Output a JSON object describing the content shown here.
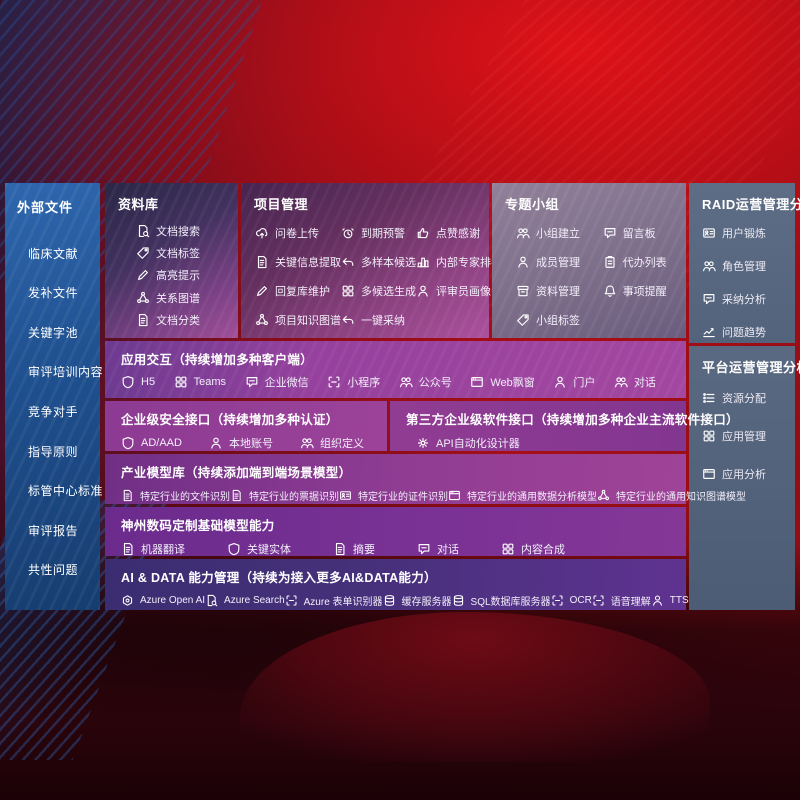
{
  "colors": {
    "background_red": "#a80e16",
    "sidebar_blue": "#1f508f",
    "slate_panel": "#56657e",
    "magenta_band": "#9c4399",
    "indigo_band": "#3b2d72",
    "text": "#ffffff"
  },
  "sidebar": {
    "title": "外部文件",
    "items": [
      "临床文献",
      "发补文件",
      "关键字池",
      "审评培训内容",
      "竞争对手",
      "指导原则",
      "标管中心标准",
      "审评报告",
      "共性问题"
    ]
  },
  "panels": {
    "library": {
      "title": "资料库",
      "items": [
        {
          "icon": "doc-search",
          "label": "文档搜索"
        },
        {
          "icon": "tag",
          "label": "文档标签"
        },
        {
          "icon": "pen",
          "label": "高亮提示"
        },
        {
          "icon": "network",
          "label": "关系图谱"
        },
        {
          "icon": "doc",
          "label": "文档分类"
        }
      ]
    },
    "project": {
      "title": "项目管理",
      "items": [
        {
          "icon": "cloud-upload",
          "label": "问卷上传"
        },
        {
          "icon": "doc",
          "label": "关键信息提取"
        },
        {
          "icon": "pen",
          "label": "回复库维护"
        },
        {
          "icon": "network",
          "label": "项目知识图谱"
        },
        {
          "icon": "alarm",
          "label": "到期预警"
        },
        {
          "icon": "arrow",
          "label": "多样本候选"
        },
        {
          "icon": "grid",
          "label": "多候选生成"
        },
        {
          "icon": "arrow",
          "label": "一键采纳"
        },
        {
          "icon": "thumbs-up",
          "label": "点赞感谢"
        },
        {
          "icon": "ranking",
          "label": "内部专家排名"
        },
        {
          "icon": "person",
          "label": "评审员画像"
        }
      ]
    },
    "group": {
      "title": "专题小组",
      "items": [
        {
          "icon": "people",
          "label": "小组建立"
        },
        {
          "icon": "person",
          "label": "成员管理"
        },
        {
          "icon": "archive",
          "label": "资料管理"
        },
        {
          "icon": "tag",
          "label": "小组标签"
        },
        {
          "icon": "chat",
          "label": "留言板"
        },
        {
          "icon": "clipboard",
          "label": "代办列表"
        },
        {
          "icon": "bell",
          "label": "事项提醒"
        }
      ]
    },
    "raid": {
      "title": "RAID运营管理分析",
      "items": [
        {
          "icon": "id-card",
          "label": "用户锻炼"
        },
        {
          "icon": "people",
          "label": "角色管理"
        },
        {
          "icon": "chat",
          "label": "采纳分析"
        },
        {
          "icon": "trend",
          "label": "问题趋势"
        }
      ]
    },
    "platform": {
      "title": "平台运营管理分析",
      "items": [
        {
          "icon": "list",
          "label": "资源分配"
        },
        {
          "icon": "grid",
          "label": "应用管理"
        },
        {
          "icon": "window",
          "label": "应用分析"
        }
      ]
    }
  },
  "bands": {
    "interact": {
      "title": "应用交互（持续增加多种客户端）",
      "items": [
        {
          "icon": "shield",
          "label": "H5"
        },
        {
          "icon": "grid",
          "label": "Teams"
        },
        {
          "icon": "chat",
          "label": "企业微信"
        },
        {
          "icon": "brackets",
          "label": "小程序"
        },
        {
          "icon": "people",
          "label": "公众号"
        },
        {
          "icon": "window",
          "label": "Web飘窗"
        },
        {
          "icon": "person",
          "label": "门户"
        },
        {
          "icon": "people",
          "label": "对话"
        }
      ]
    },
    "security": {
      "title": "企业级安全接口（持续增加多种认证）",
      "items": [
        {
          "icon": "shield",
          "label": "AD/AAD"
        },
        {
          "icon": "person",
          "label": "本地账号"
        },
        {
          "icon": "people",
          "label": "组织定义"
        }
      ]
    },
    "thirdparty": {
      "title": "第三方企业级软件接口（持续增加多种企业主流软件接口）",
      "items": [
        {
          "icon": "gear",
          "label": "API自动化设计器"
        }
      ]
    },
    "industry": {
      "title": "产业模型库（持续添加端到端场景模型）",
      "items": [
        {
          "icon": "doc",
          "label": "特定行业的文件识别"
        },
        {
          "icon": "doc",
          "label": "特定行业的票据识别"
        },
        {
          "icon": "id-card",
          "label": "特定行业的证件识别"
        },
        {
          "icon": "window",
          "label": "特定行业的通用数据分析模型"
        },
        {
          "icon": "network",
          "label": "特定行业的通用知识图谱模型"
        }
      ]
    },
    "digital": {
      "title": "神州数码定制基础模型能力",
      "items": [
        {
          "icon": "doc",
          "label": "机器翻译"
        },
        {
          "icon": "shield",
          "label": "关键实体"
        },
        {
          "icon": "doc",
          "label": "摘要"
        },
        {
          "icon": "chat",
          "label": "对话"
        },
        {
          "icon": "grid",
          "label": "内容合成"
        }
      ]
    },
    "aidata": {
      "title": "AI & DATA 能力管理（持续为接入更多AI&DATA能力）",
      "items": [
        {
          "icon": "hexagon",
          "label": "Azure Open AI"
        },
        {
          "icon": "doc-search",
          "label": "Azure Search"
        },
        {
          "icon": "brackets",
          "label": "Azure 表单识别器"
        },
        {
          "icon": "database",
          "label": "缓存服务器"
        },
        {
          "icon": "database",
          "label": "SQL数据库服务器"
        },
        {
          "icon": "brackets",
          "label": "OCR"
        },
        {
          "icon": "brackets",
          "label": "语音理解"
        },
        {
          "icon": "person",
          "label": "TTS"
        }
      ]
    }
  }
}
